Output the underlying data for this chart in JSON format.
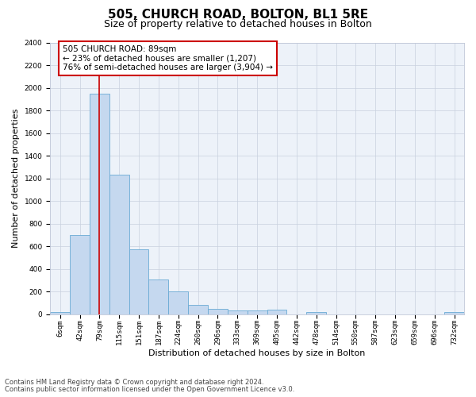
{
  "title": "505, CHURCH ROAD, BOLTON, BL1 5RE",
  "subtitle": "Size of property relative to detached houses in Bolton",
  "xlabel": "Distribution of detached houses by size in Bolton",
  "ylabel": "Number of detached properties",
  "categories": [
    "6sqm",
    "42sqm",
    "79sqm",
    "115sqm",
    "151sqm",
    "187sqm",
    "224sqm",
    "260sqm",
    "296sqm",
    "333sqm",
    "369sqm",
    "405sqm",
    "442sqm",
    "478sqm",
    "514sqm",
    "550sqm",
    "587sqm",
    "623sqm",
    "659sqm",
    "696sqm",
    "732sqm"
  ],
  "values": [
    20,
    700,
    1950,
    1230,
    575,
    305,
    200,
    85,
    50,
    35,
    35,
    40,
    0,
    20,
    0,
    0,
    0,
    0,
    0,
    0,
    20
  ],
  "bar_color": "#c5d8ef",
  "bar_edge_color": "#6aaad4",
  "vline_x": 2,
  "vline_color": "#cc0000",
  "annotation_text": "505 CHURCH ROAD: 89sqm\n← 23% of detached houses are smaller (1,207)\n76% of semi-detached houses are larger (3,904) →",
  "annotation_box_color": "#ffffff",
  "annotation_box_edge_color": "#cc0000",
  "ylim": [
    0,
    2400
  ],
  "yticks": [
    0,
    200,
    400,
    600,
    800,
    1000,
    1200,
    1400,
    1600,
    1800,
    2000,
    2200,
    2400
  ],
  "footer_line1": "Contains HM Land Registry data © Crown copyright and database right 2024.",
  "footer_line2": "Contains public sector information licensed under the Open Government Licence v3.0.",
  "plot_bg_color": "#edf2f9",
  "title_fontsize": 11,
  "subtitle_fontsize": 9,
  "axis_label_fontsize": 8,
  "tick_fontsize": 6.5,
  "annotation_fontsize": 7.5,
  "footer_fontsize": 6
}
